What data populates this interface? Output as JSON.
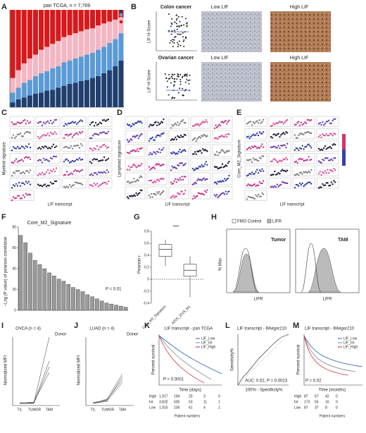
{
  "panels": {
    "A": {
      "label": "A",
      "title": "pan TCGA, n = 7,769",
      "colors": [
        "#1f3f6e",
        "#5b9bd5",
        "#f4b6c2",
        "#d7191c"
      ],
      "series": [
        [
          5,
          8,
          10,
          12,
          14,
          15,
          17,
          18,
          20,
          22,
          24,
          25,
          27,
          28,
          30,
          32,
          35,
          38,
          42,
          48
        ],
        [
          10,
          12,
          15,
          16,
          18,
          20,
          20,
          22,
          22,
          24,
          24,
          25,
          25,
          26,
          26,
          27,
          27,
          28,
          28,
          28
        ],
        [
          15,
          18,
          20,
          22,
          22,
          24,
          25,
          25,
          26,
          26,
          26,
          26,
          26,
          26,
          25,
          25,
          24,
          22,
          20,
          16
        ],
        [
          70,
          62,
          55,
          50,
          46,
          41,
          38,
          35,
          32,
          28,
          26,
          24,
          22,
          20,
          19,
          16,
          14,
          12,
          10,
          8
        ]
      ],
      "ylim": [
        0,
        100
      ]
    },
    "B": {
      "label": "B",
      "row1": "Colon cancer",
      "row2": "Ovarian cancer",
      "ylabel": "LIF H-Score",
      "low": "Low LIF",
      "high": "High LIF"
    },
    "C": {
      "label": "C",
      "ylabel": "Myeloid signature",
      "xlabel": "LIF transcript"
    },
    "D": {
      "label": "D",
      "ylabel": "Lymphoid signature",
      "xlabel": "LIF transcript"
    },
    "E": {
      "label": "E",
      "ylabel": "Core_M2_Signature",
      "xlabel": "LIF transcript"
    },
    "F": {
      "label": "F",
      "title": "Core_M2_Signature",
      "ylabel": "−Log (P value) of pearson correlation",
      "note": "P = 0.01",
      "values": [
        72,
        65,
        55,
        48,
        44,
        40,
        36,
        33,
        30,
        28,
        25,
        22,
        20,
        18,
        15,
        13,
        11,
        9,
        7,
        6,
        5,
        4,
        3
      ],
      "ylim": [
        0,
        80
      ],
      "yticks": [
        0,
        20,
        40,
        60,
        80
      ]
    },
    "G": {
      "label": "G",
      "ylabel": "Pearson r",
      "sig": "***",
      "categories": [
        "Core_M2_Signature",
        "A20S_2018_M1"
      ],
      "boxes": [
        [
          0.22,
          0.38,
          0.5,
          0.58,
          0.66
        ],
        [
          -0.3,
          0.05,
          0.15,
          0.25,
          0.38
        ]
      ],
      "ylim": [
        -0.4,
        0.8
      ],
      "yticks": [
        -0.4,
        -0.2,
        0,
        0.2,
        0.4,
        0.6,
        0.8
      ]
    },
    "H": {
      "label": "H",
      "legend": [
        "FMO Control",
        "LIFR"
      ],
      "left": "Tumor",
      "right": "TAM",
      "ylabel": "% Max",
      "xlabel": "LIFR"
    },
    "I": {
      "label": "I",
      "title": "OVCA (n = 4)",
      "legend": "Donor",
      "ylabel": "Normalized MFI",
      "categories": [
        "TIL",
        "TUMOR",
        "TAM"
      ]
    },
    "J": {
      "label": "J",
      "title": "LUAD (n = 4)",
      "legend": "Donor",
      "ylabel": "Normalized MFI",
      "categories": [
        "TIL",
        "TUMOR",
        "TAM"
      ]
    },
    "K": {
      "label": "K",
      "title": "LIF transcript - pan TCGA",
      "ylabel": "Percent survival",
      "xlabel": "Time (days)",
      "legend": [
        "LIF_Low",
        "LIF_Int",
        "LIF_High"
      ],
      "note": "P < 0.0001",
      "tablehead": "Patient numbers",
      "rows": [
        [
          "High",
          "1,917",
          "194",
          "20",
          "3",
          "0"
        ],
        [
          "Int",
          "3,832",
          "505",
          "53",
          "11",
          "1"
        ],
        [
          "Low",
          "1,915",
          "236",
          "41",
          "4",
          "1"
        ]
      ]
    },
    "L": {
      "label": "L",
      "title": "LIF transcript - IMvigor210",
      "ylabel": "Sensitivity%",
      "xlabel": "100% - Specificity%",
      "note": "AUC: 0.52, P = 0.0023"
    },
    "M": {
      "label": "M",
      "title": "LIF transcript - IMvigor210",
      "ylabel": "Percent survival",
      "xlabel": "Time (months)",
      "legend": [
        "LIF_Low",
        "LIF_Int",
        "LIF_High"
      ],
      "note": "P = 0.02",
      "tablehead": "Patient numbers",
      "rows": [
        [
          "High",
          "87",
          "67",
          "42",
          "0"
        ],
        [
          "Int",
          "173",
          "55",
          "16",
          "0"
        ],
        [
          "Low",
          "87",
          "37",
          "8",
          "0"
        ]
      ]
    }
  }
}
